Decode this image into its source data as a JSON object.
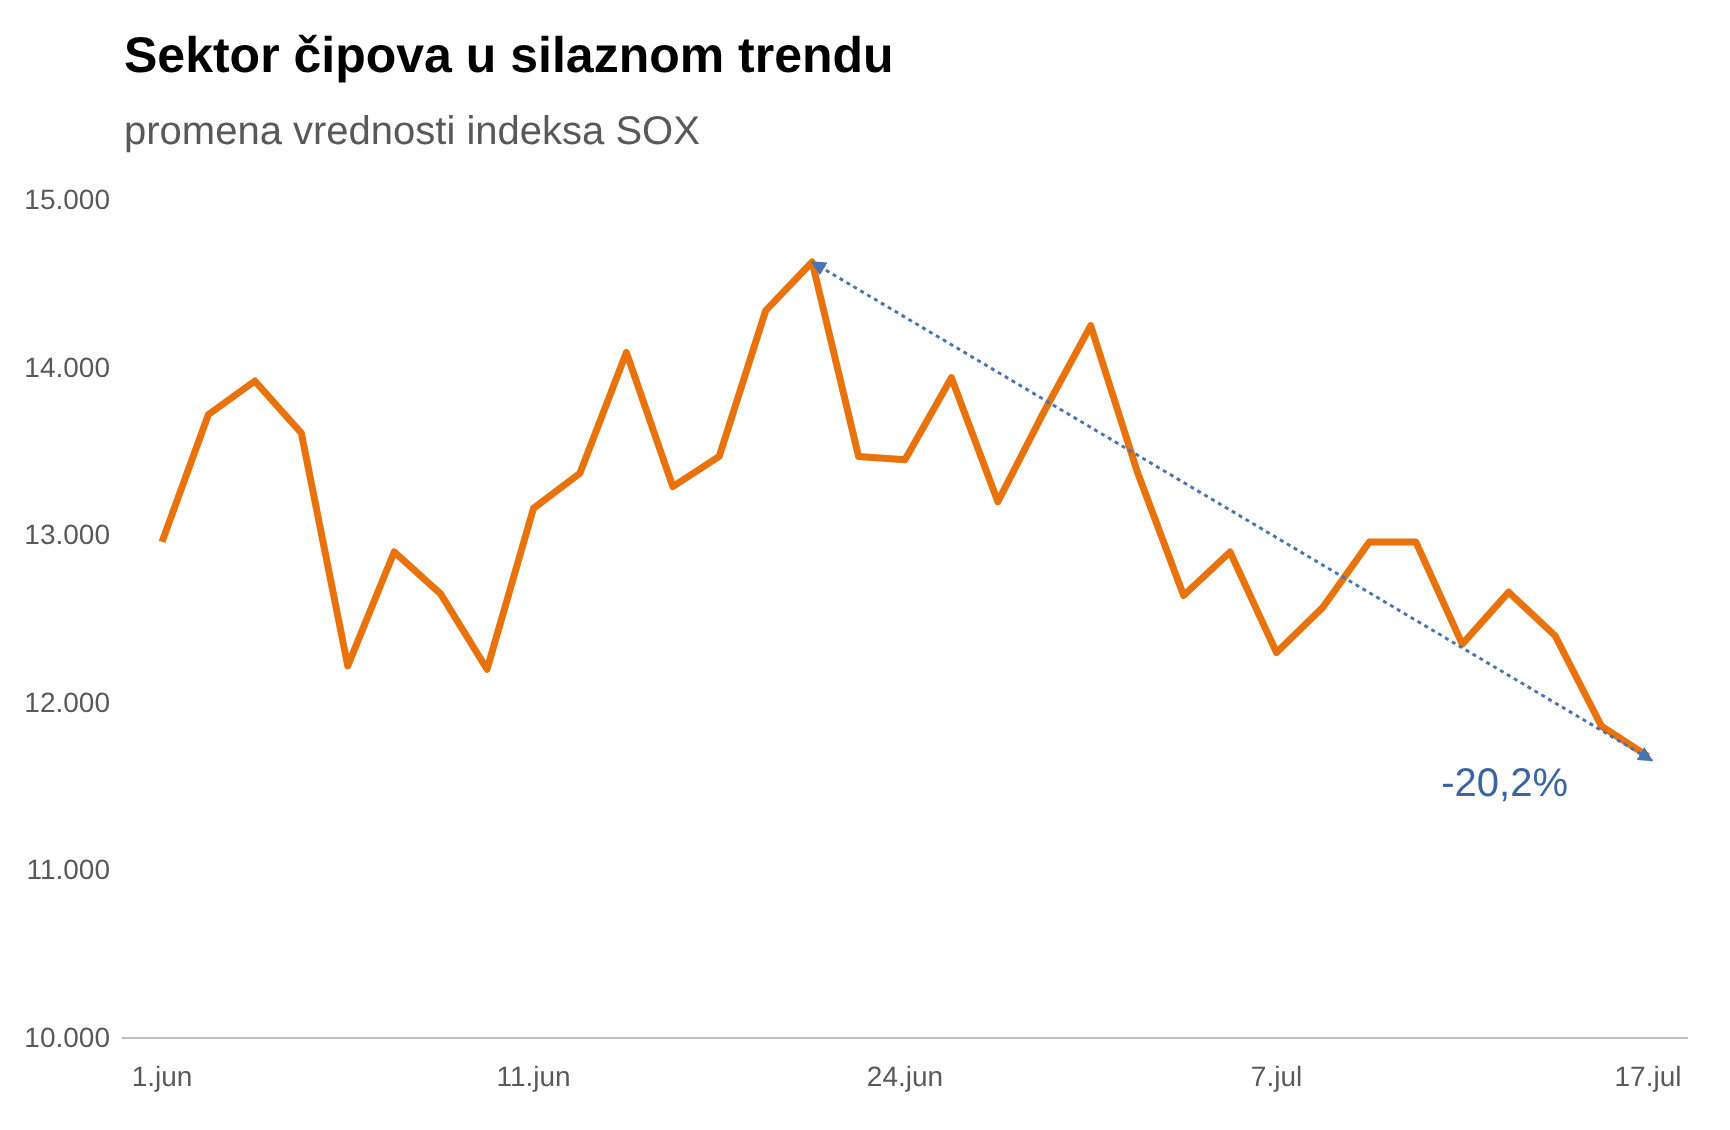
{
  "chart_data": {
    "type": "line",
    "title": "Sektor čipova u silaznom trendu",
    "subtitle": "promena vrednosti indeksa SOX",
    "categories": [
      "1.jun",
      null,
      null,
      null,
      null,
      null,
      null,
      null,
      "11.jun",
      null,
      null,
      null,
      null,
      null,
      null,
      null,
      "24.jun",
      null,
      null,
      null,
      null,
      null,
      null,
      null,
      "7.jul",
      null,
      null,
      null,
      null,
      null,
      null,
      null,
      "17.jul"
    ],
    "series": [
      {
        "color": "#e8720c",
        "values": [
          12960,
          13720,
          13920,
          13610,
          12220,
          12900,
          12650,
          12200,
          13160,
          13370,
          14090,
          13290,
          13470,
          14340,
          14630,
          13470,
          13450,
          13940,
          13200,
          13740,
          14250,
          13380,
          12640,
          12900,
          12300,
          12570,
          12960,
          12960,
          12350,
          12660,
          12400,
          11860,
          11680
        ]
      }
    ],
    "ylim": [
      10000,
      15000
    ],
    "yticks": [
      {
        "value": 10000,
        "label": "10.000"
      },
      {
        "value": 11000,
        "label": "11.000"
      },
      {
        "value": 12000,
        "label": "12.000"
      },
      {
        "value": 13000,
        "label": "13.000"
      },
      {
        "value": 14000,
        "label": "14.000"
      },
      {
        "value": 15000,
        "label": "15.000"
      }
    ],
    "annotations": [
      {
        "text": "-20,2%",
        "x": "17.jul",
        "y": 11680
      }
    ],
    "grid": false,
    "marker": "none",
    "line_style": "solid"
  }
}
